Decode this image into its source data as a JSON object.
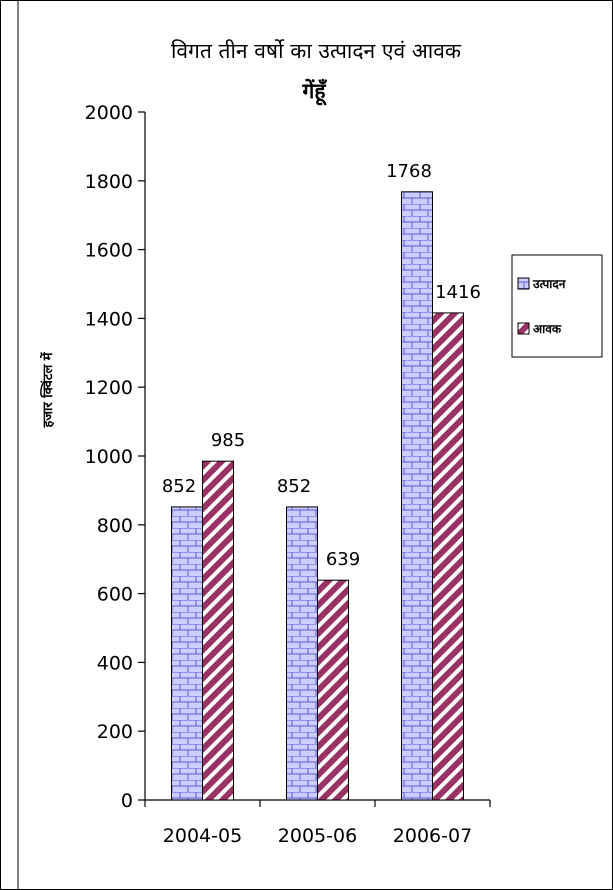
{
  "chart_data": {
    "type": "bar",
    "title": "विगत तीन वर्षो का उत्पादन एवं आवक",
    "subtitle": "गेंहूँ",
    "xlabel": "",
    "ylabel": "हजार क्विंटल में",
    "categories": [
      "2004-05",
      "2005-06",
      "2006-07"
    ],
    "series": [
      {
        "name": "उत्पादन",
        "values": [
          852,
          852,
          1768
        ],
        "color": "#ccccff",
        "pattern": "brick"
      },
      {
        "name": "आवक",
        "values": [
          985,
          639,
          1416
        ],
        "color": "#993366",
        "pattern": "diagonal-stripes"
      }
    ],
    "ylim": [
      0,
      2000
    ],
    "yticks": [
      0,
      200,
      400,
      600,
      800,
      1000,
      1200,
      1400,
      1600,
      1800,
      2000
    ],
    "legend_position": "right",
    "grid": false
  }
}
